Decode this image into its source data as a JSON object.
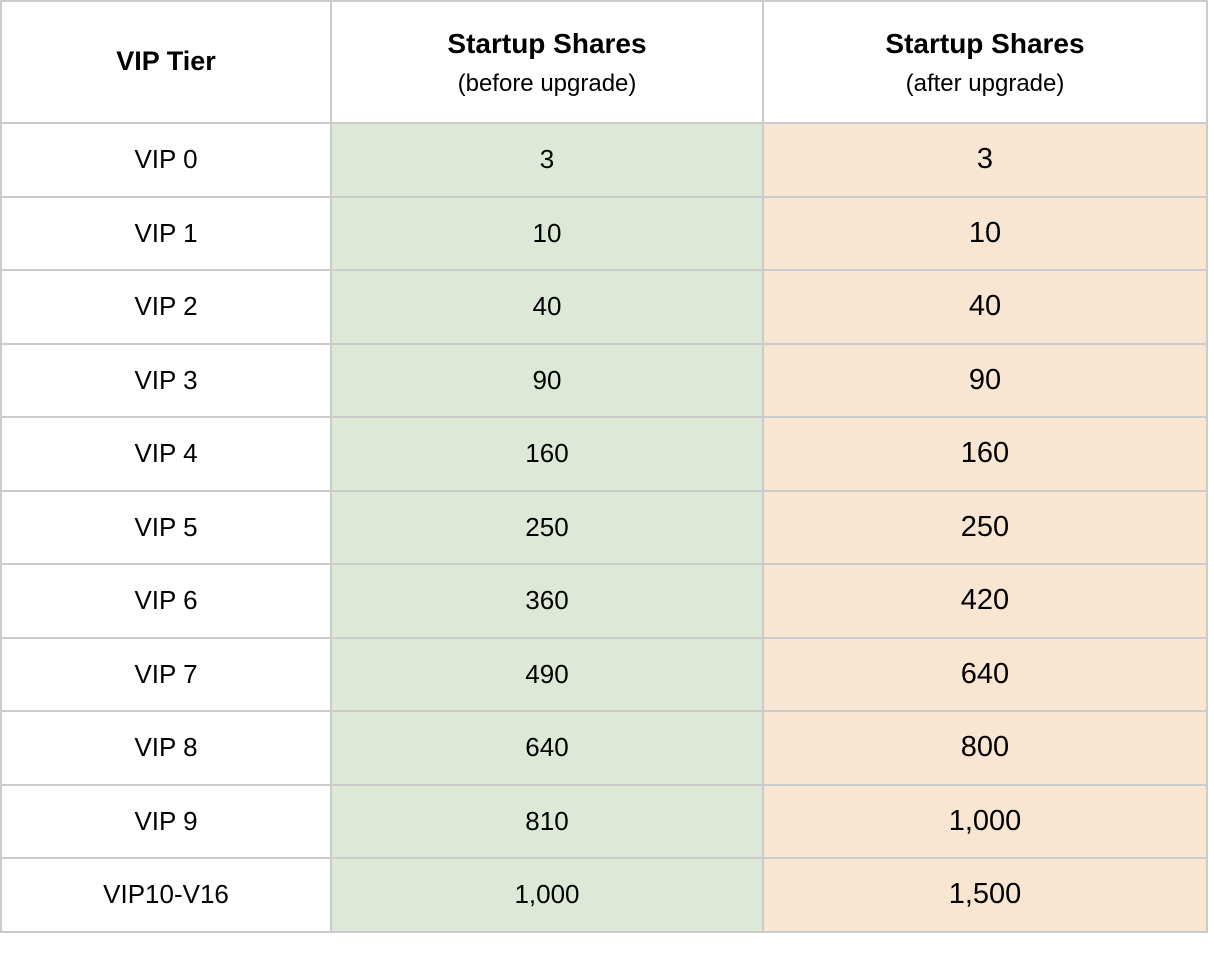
{
  "page": {
    "background": "#ffffff",
    "border_color": "#cbcbcb"
  },
  "table": {
    "columns": [
      {
        "id": "tier",
        "title": "VIP Tier",
        "subtitle": "",
        "bg": "#ffffff"
      },
      {
        "id": "before",
        "title": "Startup Shares",
        "subtitle": "(before upgrade)",
        "bg": "#dde8d6"
      },
      {
        "id": "after",
        "title": "Startup Shares",
        "subtitle": "(after upgrade)",
        "bg": "#f8e5d2"
      }
    ],
    "rows": [
      {
        "tier": "VIP 0",
        "before": "3",
        "after": "3"
      },
      {
        "tier": "VIP 1",
        "before": "10",
        "after": "10"
      },
      {
        "tier": "VIP 2",
        "before": "40",
        "after": "40"
      },
      {
        "tier": "VIP 3",
        "before": "90",
        "after": "90"
      },
      {
        "tier": "VIP 4",
        "before": "160",
        "after": "160"
      },
      {
        "tier": "VIP 5",
        "before": "250",
        "after": "250"
      },
      {
        "tier": "VIP 6",
        "before": "360",
        "after": "420"
      },
      {
        "tier": "VIP 7",
        "before": "490",
        "after": "640"
      },
      {
        "tier": "VIP 8",
        "before": "640",
        "after": "800"
      },
      {
        "tier": "VIP 9",
        "before": "810",
        "after": "1,000"
      },
      {
        "tier": "VIP10-V16",
        "before": "1,000",
        "after": "1,500"
      }
    ]
  },
  "chart_data": {
    "type": "table",
    "columns": [
      "VIP Tier",
      "Startup Shares (before upgrade)",
      "Startup Shares (after upgrade)"
    ],
    "rows": [
      [
        "VIP 0",
        3,
        3
      ],
      [
        "VIP 1",
        10,
        10
      ],
      [
        "VIP 2",
        40,
        40
      ],
      [
        "VIP 3",
        90,
        90
      ],
      [
        "VIP 4",
        160,
        160
      ],
      [
        "VIP 5",
        250,
        250
      ],
      [
        "VIP 6",
        360,
        420
      ],
      [
        "VIP 7",
        490,
        640
      ],
      [
        "VIP 8",
        640,
        800
      ],
      [
        "VIP 9",
        810,
        1000
      ],
      [
        "VIP10-V16",
        1000,
        1500
      ]
    ]
  }
}
